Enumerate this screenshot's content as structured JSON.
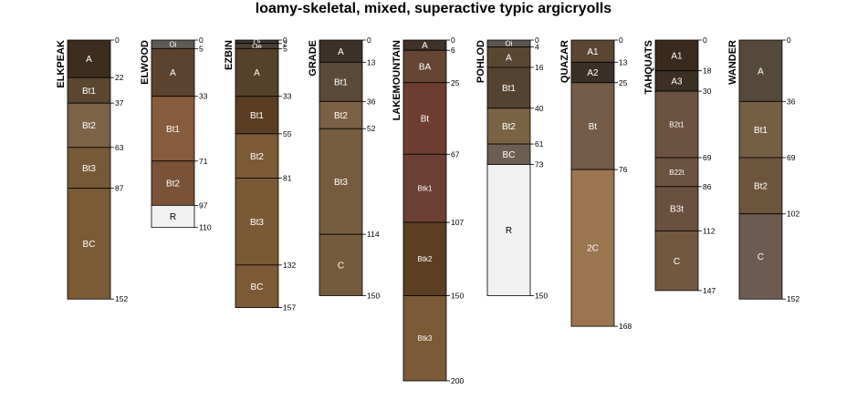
{
  "title": "loamy-skeletal, mixed, superactive typic argicryolls",
  "depth_scale_max_cm": 200,
  "profiles": [
    {
      "name": "ELKPEAK",
      "horizons": [
        {
          "name": "A",
          "top": 0,
          "bottom": 22,
          "color": "#3c2d1e"
        },
        {
          "name": "Bt1",
          "top": 22,
          "bottom": 37,
          "color": "#5b4630"
        },
        {
          "name": "Bt2",
          "top": 37,
          "bottom": 63,
          "color": "#7c6246"
        },
        {
          "name": "Bt3",
          "top": 63,
          "bottom": 87,
          "color": "#765a37"
        },
        {
          "name": "BC",
          "top": 87,
          "bottom": 152,
          "color": "#7a5b35"
        }
      ]
    },
    {
      "name": "ELWOOD",
      "horizons": [
        {
          "name": "Oi",
          "top": 0,
          "bottom": 5,
          "color": "#5e5a55"
        },
        {
          "name": "A",
          "top": 5,
          "bottom": 33,
          "color": "#5b4330"
        },
        {
          "name": "Bt1",
          "top": 33,
          "bottom": 71,
          "color": "#865c3c"
        },
        {
          "name": "Bt2",
          "top": 71,
          "bottom": 97,
          "color": "#7a5238"
        },
        {
          "name": "R",
          "top": 97,
          "bottom": 110,
          "color": "#f1f1f1"
        }
      ]
    },
    {
      "name": "EZBIN",
      "horizons": [
        {
          "name": "Oi",
          "top": 0,
          "bottom": 2,
          "color": "#3a3530"
        },
        {
          "name": "Oe",
          "top": 2,
          "bottom": 5,
          "color": "#4a4035"
        },
        {
          "name": "A",
          "top": 5,
          "bottom": 33,
          "color": "#56412b"
        },
        {
          "name": "Bt1",
          "top": 33,
          "bottom": 55,
          "color": "#5a3d22"
        },
        {
          "name": "Bt2",
          "top": 55,
          "bottom": 81,
          "color": "#7c5a36"
        },
        {
          "name": "Bt3",
          "top": 81,
          "bottom": 132,
          "color": "#7a5a35"
        },
        {
          "name": "BC",
          "top": 132,
          "bottom": 157,
          "color": "#7c5a36"
        }
      ]
    },
    {
      "name": "GRADE",
      "horizons": [
        {
          "name": "A",
          "top": 0,
          "bottom": 13,
          "color": "#3b3128"
        },
        {
          "name": "Bt1",
          "top": 13,
          "bottom": 36,
          "color": "#5b4a3a"
        },
        {
          "name": "Bt2",
          "top": 36,
          "bottom": 52,
          "color": "#7c6046"
        },
        {
          "name": "Bt3",
          "top": 52,
          "bottom": 114,
          "color": "#765c3f"
        },
        {
          "name": "C",
          "top": 114,
          "bottom": 150,
          "color": "#755b3e"
        }
      ]
    },
    {
      "name": "LAKEMOUNTAIN",
      "horizons": [
        {
          "name": "A",
          "top": 0,
          "bottom": 6,
          "color": "#3e3229"
        },
        {
          "name": "BA",
          "top": 6,
          "bottom": 25,
          "color": "#654533"
        },
        {
          "name": "Bt",
          "top": 25,
          "bottom": 67,
          "color": "#6d3d31"
        },
        {
          "name": "Btk1",
          "top": 67,
          "bottom": 107,
          "color": "#6c3f35"
        },
        {
          "name": "Btk2",
          "top": 107,
          "bottom": 150,
          "color": "#5c3f22"
        },
        {
          "name": "Btk3",
          "top": 150,
          "bottom": 200,
          "color": "#7a5a37"
        }
      ]
    },
    {
      "name": "POHLOD",
      "horizons": [
        {
          "name": "Oi",
          "top": 0,
          "bottom": 4,
          "color": "#5a5550"
        },
        {
          "name": "A",
          "top": 4,
          "bottom": 16,
          "color": "#5a4733"
        },
        {
          "name": "Bt1",
          "top": 16,
          "bottom": 40,
          "color": "#544331"
        },
        {
          "name": "Bt2",
          "top": 40,
          "bottom": 61,
          "color": "#7a6344"
        },
        {
          "name": "BC",
          "top": 61,
          "bottom": 73,
          "color": "#6c5f52"
        },
        {
          "name": "R",
          "top": 73,
          "bottom": 150,
          "color": "#f1f1f1"
        }
      ]
    },
    {
      "name": "QUAZAR",
      "horizons": [
        {
          "name": "A1",
          "top": 0,
          "bottom": 13,
          "color": "#5b4633"
        },
        {
          "name": "A2",
          "top": 13,
          "bottom": 25,
          "color": "#3b3027"
        },
        {
          "name": "Bt",
          "top": 25,
          "bottom": 76,
          "color": "#745c49"
        },
        {
          "name": "2C",
          "top": 76,
          "bottom": 168,
          "color": "#9b7450"
        }
      ]
    },
    {
      "name": "TAHQUATS",
      "horizons": [
        {
          "name": "A1",
          "top": 0,
          "bottom": 18,
          "color": "#3a2a1e"
        },
        {
          "name": "A3",
          "top": 18,
          "bottom": 30,
          "color": "#3c2f24"
        },
        {
          "name": "B2t1",
          "top": 30,
          "bottom": 69,
          "color": "#6c5240"
        },
        {
          "name": "B22t",
          "top": 69,
          "bottom": 86,
          "color": "#6c5240"
        },
        {
          "name": "B3t",
          "top": 86,
          "bottom": 112,
          "color": "#6a503e"
        },
        {
          "name": "C",
          "top": 112,
          "bottom": 147,
          "color": "#735841"
        }
      ]
    },
    {
      "name": "WANDER",
      "horizons": [
        {
          "name": "A",
          "top": 0,
          "bottom": 36,
          "color": "#55493c"
        },
        {
          "name": "Bt1",
          "top": 36,
          "bottom": 69,
          "color": "#745e44"
        },
        {
          "name": "Bt2",
          "top": 69,
          "bottom": 102,
          "color": "#6d553d"
        },
        {
          "name": "C",
          "top": 102,
          "bottom": 152,
          "color": "#6d5a50"
        }
      ]
    }
  ]
}
